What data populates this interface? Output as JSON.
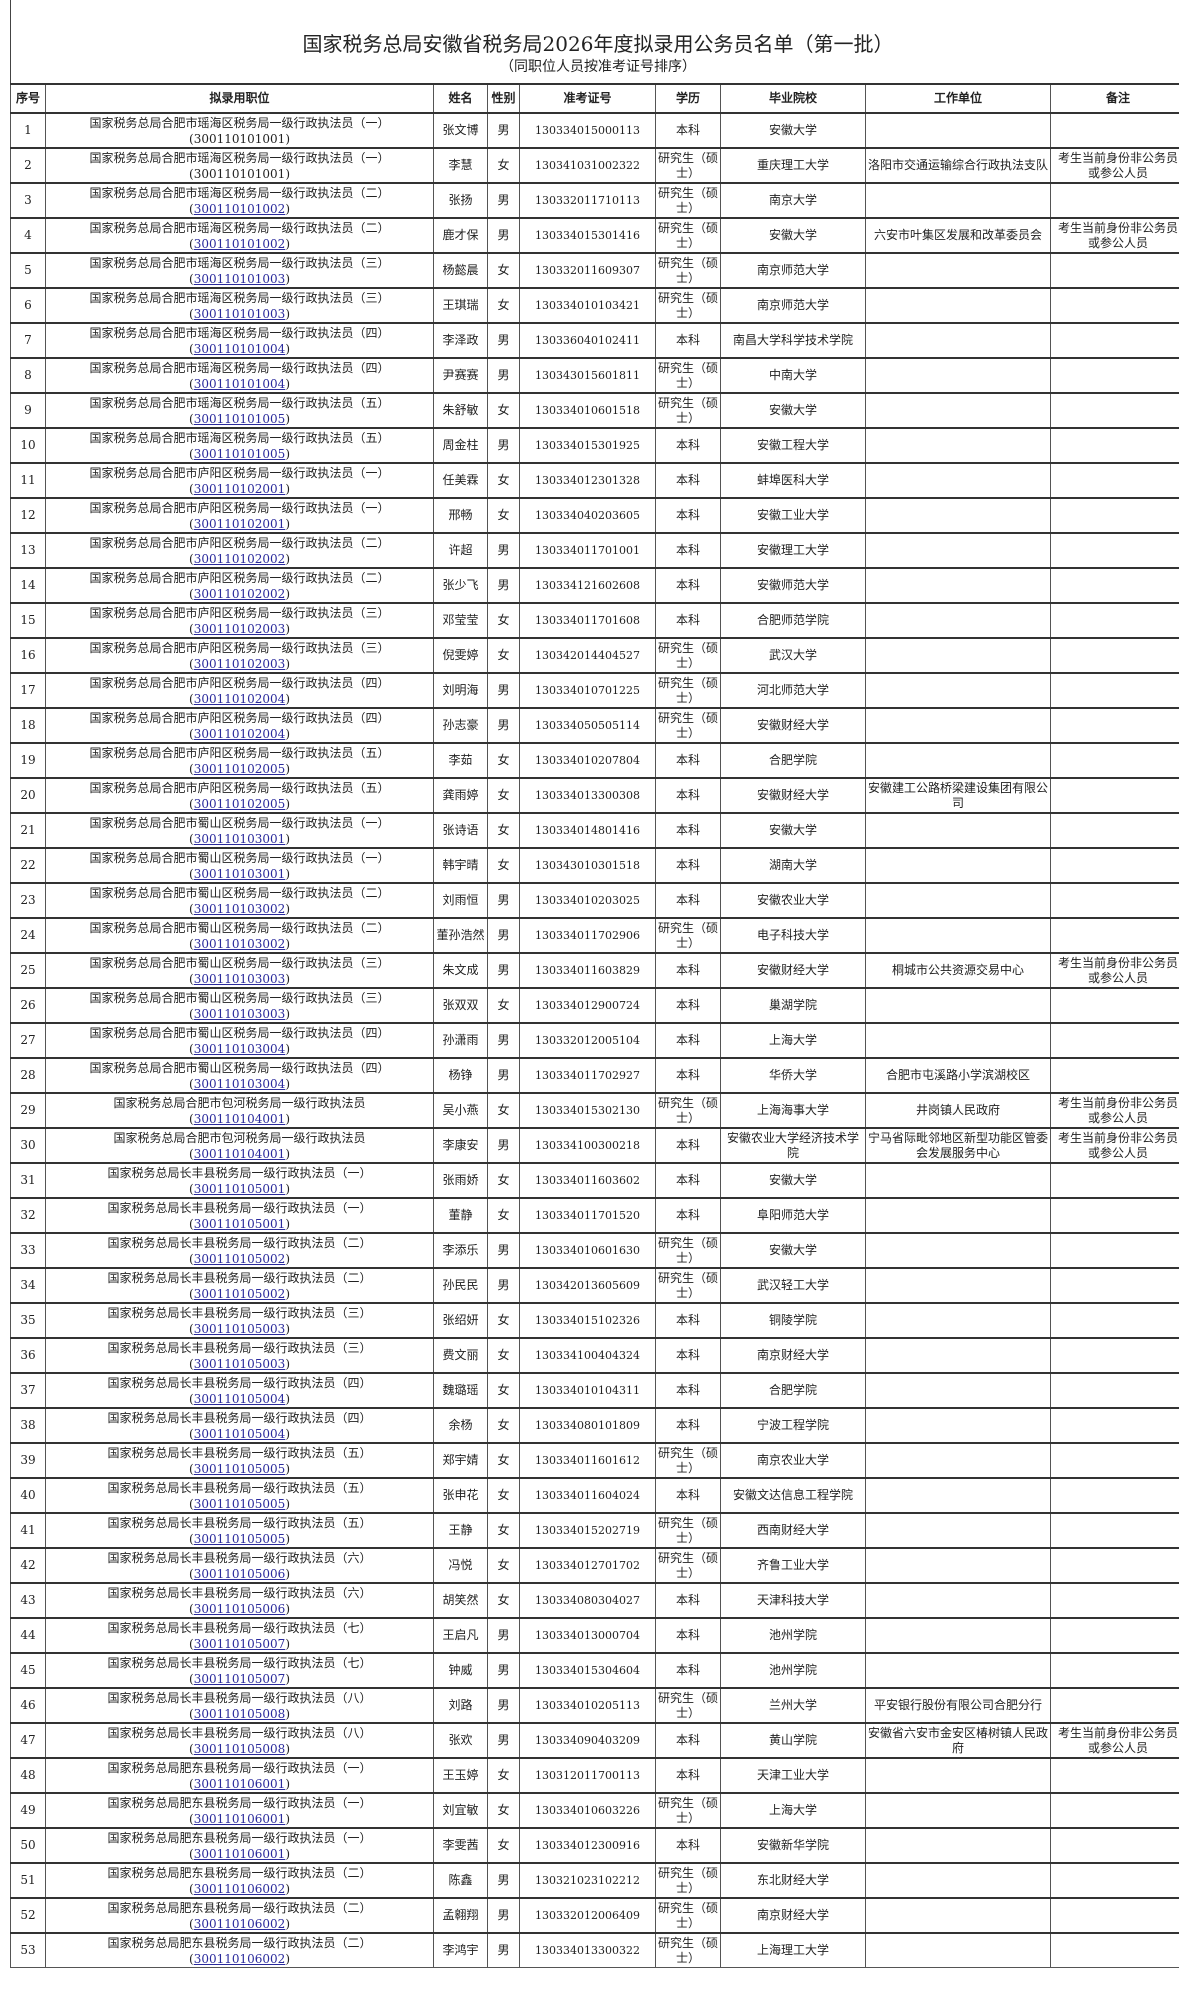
{
  "title": "国家税务总局安徽省税务局2026年度拟录用公务员名单（第一批）",
  "subtitle": "（同职位人员按准考证号排序）",
  "columns": [
    "序号",
    "拟录用职位",
    "姓名",
    "性别",
    "准考证号",
    "学历",
    "毕业院校",
    "工作单位",
    "备注"
  ],
  "link_color": "#2a2a9c",
  "rows": [
    {
      "no": "1",
      "position": "国家税务总局合肥市瑶海区税务局一级行政执法员（一）",
      "code": "300110101001",
      "code_link": false,
      "name": "张文博",
      "gender": "男",
      "exam_no": "130334015000113",
      "education": "本科",
      "school": "安徽大学",
      "employer": "",
      "note": ""
    },
    {
      "no": "2",
      "position": "国家税务总局合肥市瑶海区税务局一级行政执法员（一）",
      "code": "300110101001",
      "code_link": false,
      "name": "李慧",
      "gender": "女",
      "exam_no": "130341031002322",
      "education": "研究生（硕士）",
      "school": "重庆理工大学",
      "employer": "洛阳市交通运输综合行政执法支队",
      "note": "考生当前身份非公务员或参公人员"
    },
    {
      "no": "3",
      "position": "国家税务总局合肥市瑶海区税务局一级行政执法员（二）",
      "code": "300110101002",
      "code_link": true,
      "name": "张扬",
      "gender": "男",
      "exam_no": "130332011710113",
      "education": "研究生（硕士）",
      "school": "南京大学",
      "employer": "",
      "note": ""
    },
    {
      "no": "4",
      "position": "国家税务总局合肥市瑶海区税务局一级行政执法员（二）",
      "code": "300110101002",
      "code_link": true,
      "name": "鹿才保",
      "gender": "男",
      "exam_no": "130334015301416",
      "education": "研究生（硕士）",
      "school": "安徽大学",
      "employer": "六安市叶集区发展和改革委员会",
      "note": "考生当前身份非公务员或参公人员"
    },
    {
      "no": "5",
      "position": "国家税务总局合肥市瑶海区税务局一级行政执法员（三）",
      "code": "300110101003",
      "code_link": true,
      "name": "杨懿晨",
      "gender": "女",
      "exam_no": "130332011609307",
      "education": "研究生（硕士）",
      "school": "南京师范大学",
      "employer": "",
      "note": ""
    },
    {
      "no": "6",
      "position": "国家税务总局合肥市瑶海区税务局一级行政执法员（三）",
      "code": "300110101003",
      "code_link": true,
      "name": "王琪瑞",
      "gender": "女",
      "exam_no": "130334010103421",
      "education": "研究生（硕士）",
      "school": "南京师范大学",
      "employer": "",
      "note": ""
    },
    {
      "no": "7",
      "position": "国家税务总局合肥市瑶海区税务局一级行政执法员（四）",
      "code": "300110101004",
      "code_link": true,
      "name": "李泽政",
      "gender": "男",
      "exam_no": "130336040102411",
      "education": "本科",
      "school": "南昌大学科学技术学院",
      "employer": "",
      "note": ""
    },
    {
      "no": "8",
      "position": "国家税务总局合肥市瑶海区税务局一级行政执法员（四）",
      "code": "300110101004",
      "code_link": true,
      "name": "尹赛赛",
      "gender": "男",
      "exam_no": "130343015601811",
      "education": "研究生（硕士）",
      "school": "中南大学",
      "employer": "",
      "note": ""
    },
    {
      "no": "9",
      "position": "国家税务总局合肥市瑶海区税务局一级行政执法员（五）",
      "code": "300110101005",
      "code_link": true,
      "name": "朱舒敏",
      "gender": "女",
      "exam_no": "130334010601518",
      "education": "研究生（硕士）",
      "school": "安徽大学",
      "employer": "",
      "note": ""
    },
    {
      "no": "10",
      "position": "国家税务总局合肥市瑶海区税务局一级行政执法员（五）",
      "code": "300110101005",
      "code_link": true,
      "name": "周金柱",
      "gender": "男",
      "exam_no": "130334015301925",
      "education": "本科",
      "school": "安徽工程大学",
      "employer": "",
      "note": ""
    },
    {
      "no": "11",
      "position": "国家税务总局合肥市庐阳区税务局一级行政执法员（一）",
      "code": "300110102001",
      "code_link": true,
      "name": "任美霖",
      "gender": "女",
      "exam_no": "130334012301328",
      "education": "本科",
      "school": "蚌埠医科大学",
      "employer": "",
      "note": ""
    },
    {
      "no": "12",
      "position": "国家税务总局合肥市庐阳区税务局一级行政执法员（一）",
      "code": "300110102001",
      "code_link": true,
      "name": "邢畅",
      "gender": "女",
      "exam_no": "130334040203605",
      "education": "本科",
      "school": "安徽工业大学",
      "employer": "",
      "note": ""
    },
    {
      "no": "13",
      "position": "国家税务总局合肥市庐阳区税务局一级行政执法员（二）",
      "code": "300110102002",
      "code_link": true,
      "name": "许超",
      "gender": "男",
      "exam_no": "130334011701001",
      "education": "本科",
      "school": "安徽理工大学",
      "employer": "",
      "note": ""
    },
    {
      "no": "14",
      "position": "国家税务总局合肥市庐阳区税务局一级行政执法员（二）",
      "code": "300110102002",
      "code_link": true,
      "name": "张少飞",
      "gender": "男",
      "exam_no": "130334121602608",
      "education": "本科",
      "school": "安徽师范大学",
      "employer": "",
      "note": ""
    },
    {
      "no": "15",
      "position": "国家税务总局合肥市庐阳区税务局一级行政执法员（三）",
      "code": "300110102003",
      "code_link": true,
      "name": "邓莹莹",
      "gender": "女",
      "exam_no": "130334011701608",
      "education": "本科",
      "school": "合肥师范学院",
      "employer": "",
      "note": ""
    },
    {
      "no": "16",
      "position": "国家税务总局合肥市庐阳区税务局一级行政执法员（三）",
      "code": "300110102003",
      "code_link": true,
      "name": "倪雯婷",
      "gender": "女",
      "exam_no": "130342014404527",
      "education": "研究生（硕士）",
      "school": "武汉大学",
      "employer": "",
      "note": ""
    },
    {
      "no": "17",
      "position": "国家税务总局合肥市庐阳区税务局一级行政执法员（四）",
      "code": "300110102004",
      "code_link": true,
      "name": "刘明海",
      "gender": "男",
      "exam_no": "130334010701225",
      "education": "研究生（硕士）",
      "school": "河北师范大学",
      "employer": "",
      "note": ""
    },
    {
      "no": "18",
      "position": "国家税务总局合肥市庐阳区税务局一级行政执法员（四）",
      "code": "300110102004",
      "code_link": true,
      "name": "孙志豪",
      "gender": "男",
      "exam_no": "130334050505114",
      "education": "研究生（硕士）",
      "school": "安徽财经大学",
      "employer": "",
      "note": ""
    },
    {
      "no": "19",
      "position": "国家税务总局合肥市庐阳区税务局一级行政执法员（五）",
      "code": "300110102005",
      "code_link": true,
      "name": "李茹",
      "gender": "女",
      "exam_no": "130334010207804",
      "education": "本科",
      "school": "合肥学院",
      "employer": "",
      "note": ""
    },
    {
      "no": "20",
      "position": "国家税务总局合肥市庐阳区税务局一级行政执法员（五）",
      "code": "300110102005",
      "code_link": true,
      "name": "龚雨婷",
      "gender": "女",
      "exam_no": "130334013300308",
      "education": "本科",
      "school": "安徽财经大学",
      "employer": "安徽建工公路桥梁建设集团有限公司",
      "note": ""
    },
    {
      "no": "21",
      "position": "国家税务总局合肥市蜀山区税务局一级行政执法员（一）",
      "code": "300110103001",
      "code_link": true,
      "name": "张诗语",
      "gender": "女",
      "exam_no": "130334014801416",
      "education": "本科",
      "school": "安徽大学",
      "employer": "",
      "note": ""
    },
    {
      "no": "22",
      "position": "国家税务总局合肥市蜀山区税务局一级行政执法员（一）",
      "code": "300110103001",
      "code_link": true,
      "name": "韩宇晴",
      "gender": "女",
      "exam_no": "130343010301518",
      "education": "本科",
      "school": "湖南大学",
      "employer": "",
      "note": ""
    },
    {
      "no": "23",
      "position": "国家税务总局合肥市蜀山区税务局一级行政执法员（二）",
      "code": "300110103002",
      "code_link": true,
      "name": "刘雨恒",
      "gender": "男",
      "exam_no": "130334010203025",
      "education": "本科",
      "school": "安徽农业大学",
      "employer": "",
      "note": ""
    },
    {
      "no": "24",
      "position": "国家税务总局合肥市蜀山区税务局一级行政执法员（二）",
      "code": "300110103002",
      "code_link": true,
      "name": "董孙浩然",
      "gender": "男",
      "exam_no": "130334011702906",
      "education": "研究生（硕士）",
      "school": "电子科技大学",
      "employer": "",
      "note": ""
    },
    {
      "no": "25",
      "position": "国家税务总局合肥市蜀山区税务局一级行政执法员（三）",
      "code": "300110103003",
      "code_link": true,
      "name": "朱文成",
      "gender": "男",
      "exam_no": "130334011603829",
      "education": "本科",
      "school": "安徽财经大学",
      "employer": "桐城市公共资源交易中心",
      "note": "考生当前身份非公务员或参公人员"
    },
    {
      "no": "26",
      "position": "国家税务总局合肥市蜀山区税务局一级行政执法员（三）",
      "code": "300110103003",
      "code_link": true,
      "name": "张双双",
      "gender": "女",
      "exam_no": "130334012900724",
      "education": "本科",
      "school": "巢湖学院",
      "employer": "",
      "note": ""
    },
    {
      "no": "27",
      "position": "国家税务总局合肥市蜀山区税务局一级行政执法员（四）",
      "code": "300110103004",
      "code_link": true,
      "name": "孙潇雨",
      "gender": "男",
      "exam_no": "130332012005104",
      "education": "本科",
      "school": "上海大学",
      "employer": "",
      "note": ""
    },
    {
      "no": "28",
      "position": "国家税务总局合肥市蜀山区税务局一级行政执法员（四）",
      "code": "300110103004",
      "code_link": true,
      "name": "杨铮",
      "gender": "男",
      "exam_no": "130334011702927",
      "education": "本科",
      "school": "华侨大学",
      "employer": "合肥市屯溪路小学滨湖校区",
      "note": ""
    },
    {
      "no": "29",
      "position": "国家税务总局合肥市包河税务局一级行政执法员",
      "code": "300110104001",
      "code_link": true,
      "name": "吴小燕",
      "gender": "女",
      "exam_no": "130334015302130",
      "education": "研究生（硕士）",
      "school": "上海海事大学",
      "employer": "井岗镇人民政府",
      "note": "考生当前身份非公务员或参公人员"
    },
    {
      "no": "30",
      "position": "国家税务总局合肥市包河税务局一级行政执法员",
      "code": "300110104001",
      "code_link": true,
      "name": "李康安",
      "gender": "男",
      "exam_no": "130334100300218",
      "education": "本科",
      "school": "安徽农业大学经济技术学院",
      "employer": "宁马省际毗邻地区新型功能区管委会发展服务中心",
      "note": "考生当前身份非公务员或参公人员"
    },
    {
      "no": "31",
      "position": "国家税务总局长丰县税务局一级行政执法员（一）",
      "code": "300110105001",
      "code_link": true,
      "name": "张雨娇",
      "gender": "女",
      "exam_no": "130334011603602",
      "education": "本科",
      "school": "安徽大学",
      "employer": "",
      "note": ""
    },
    {
      "no": "32",
      "position": "国家税务总局长丰县税务局一级行政执法员（一）",
      "code": "300110105001",
      "code_link": true,
      "name": "董静",
      "gender": "女",
      "exam_no": "130334011701520",
      "education": "本科",
      "school": "阜阳师范大学",
      "employer": "",
      "note": ""
    },
    {
      "no": "33",
      "position": "国家税务总局长丰县税务局一级行政执法员（二）",
      "code": "300110105002",
      "code_link": true,
      "name": "李添乐",
      "gender": "男",
      "exam_no": "130334010601630",
      "education": "研究生（硕士）",
      "school": "安徽大学",
      "employer": "",
      "note": ""
    },
    {
      "no": "34",
      "position": "国家税务总局长丰县税务局一级行政执法员（二）",
      "code": "300110105002",
      "code_link": true,
      "name": "孙民民",
      "gender": "男",
      "exam_no": "130342013605609",
      "education": "研究生（硕士）",
      "school": "武汉轻工大学",
      "employer": "",
      "note": ""
    },
    {
      "no": "35",
      "position": "国家税务总局长丰县税务局一级行政执法员（三）",
      "code": "300110105003",
      "code_link": true,
      "name": "张绍妍",
      "gender": "女",
      "exam_no": "130334015102326",
      "education": "本科",
      "school": "铜陵学院",
      "employer": "",
      "note": ""
    },
    {
      "no": "36",
      "position": "国家税务总局长丰县税务局一级行政执法员（三）",
      "code": "300110105003",
      "code_link": true,
      "name": "费文丽",
      "gender": "女",
      "exam_no": "130334100404324",
      "education": "本科",
      "school": "南京财经大学",
      "employer": "",
      "note": ""
    },
    {
      "no": "37",
      "position": "国家税务总局长丰县税务局一级行政执法员（四）",
      "code": "300110105004",
      "code_link": true,
      "name": "魏璐瑶",
      "gender": "女",
      "exam_no": "130334010104311",
      "education": "本科",
      "school": "合肥学院",
      "employer": "",
      "note": ""
    },
    {
      "no": "38",
      "position": "国家税务总局长丰县税务局一级行政执法员（四）",
      "code": "300110105004",
      "code_link": true,
      "name": "余杨",
      "gender": "女",
      "exam_no": "130334080101809",
      "education": "本科",
      "school": "宁波工程学院",
      "employer": "",
      "note": ""
    },
    {
      "no": "39",
      "position": "国家税务总局长丰县税务局一级行政执法员（五）",
      "code": "300110105005",
      "code_link": true,
      "name": "郑宇婧",
      "gender": "女",
      "exam_no": "130334011601612",
      "education": "研究生（硕士）",
      "school": "南京农业大学",
      "employer": "",
      "note": ""
    },
    {
      "no": "40",
      "position": "国家税务总局长丰县税务局一级行政执法员（五）",
      "code": "300110105005",
      "code_link": true,
      "name": "张申花",
      "gender": "女",
      "exam_no": "130334011604024",
      "education": "本科",
      "school": "安徽文达信息工程学院",
      "employer": "",
      "note": ""
    },
    {
      "no": "41",
      "position": "国家税务总局长丰县税务局一级行政执法员（五）",
      "code": "300110105005",
      "code_link": true,
      "name": "王静",
      "gender": "女",
      "exam_no": "130334015202719",
      "education": "研究生（硕士）",
      "school": "西南财经大学",
      "employer": "",
      "note": ""
    },
    {
      "no": "42",
      "position": "国家税务总局长丰县税务局一级行政执法员（六）",
      "code": "300110105006",
      "code_link": true,
      "name": "冯悦",
      "gender": "女",
      "exam_no": "130334012701702",
      "education": "研究生（硕士）",
      "school": "齐鲁工业大学",
      "employer": "",
      "note": ""
    },
    {
      "no": "43",
      "position": "国家税务总局长丰县税务局一级行政执法员（六）",
      "code": "300110105006",
      "code_link": true,
      "name": "胡笑然",
      "gender": "女",
      "exam_no": "130334080304027",
      "education": "本科",
      "school": "天津科技大学",
      "employer": "",
      "note": ""
    },
    {
      "no": "44",
      "position": "国家税务总局长丰县税务局一级行政执法员（七）",
      "code": "300110105007",
      "code_link": true,
      "name": "王启凡",
      "gender": "男",
      "exam_no": "130334013000704",
      "education": "本科",
      "school": "池州学院",
      "employer": "",
      "note": ""
    },
    {
      "no": "45",
      "position": "国家税务总局长丰县税务局一级行政执法员（七）",
      "code": "300110105007",
      "code_link": true,
      "name": "钟威",
      "gender": "男",
      "exam_no": "130334015304604",
      "education": "本科",
      "school": "池州学院",
      "employer": "",
      "note": ""
    },
    {
      "no": "46",
      "position": "国家税务总局长丰县税务局一级行政执法员（八）",
      "code": "300110105008",
      "code_link": true,
      "name": "刘路",
      "gender": "男",
      "exam_no": "130334010205113",
      "education": "研究生（硕士）",
      "school": "兰州大学",
      "employer": "平安银行股份有限公司合肥分行",
      "note": ""
    },
    {
      "no": "47",
      "position": "国家税务总局长丰县税务局一级行政执法员（八）",
      "code": "300110105008",
      "code_link": true,
      "name": "张欢",
      "gender": "男",
      "exam_no": "130334090403209",
      "education": "本科",
      "school": "黄山学院",
      "employer": "安徽省六安市金安区椿树镇人民政府",
      "note": "考生当前身份非公务员或参公人员"
    },
    {
      "no": "48",
      "position": "国家税务总局肥东县税务局一级行政执法员（一）",
      "code": "300110106001",
      "code_link": true,
      "name": "王玉婷",
      "gender": "女",
      "exam_no": "130312011700113",
      "education": "本科",
      "school": "天津工业大学",
      "employer": "",
      "note": ""
    },
    {
      "no": "49",
      "position": "国家税务总局肥东县税务局一级行政执法员（一）",
      "code": "300110106001",
      "code_link": true,
      "name": "刘宜敏",
      "gender": "女",
      "exam_no": "130334010603226",
      "education": "研究生（硕士）",
      "school": "上海大学",
      "employer": "",
      "note": ""
    },
    {
      "no": "50",
      "position": "国家税务总局肥东县税务局一级行政执法员（一）",
      "code": "300110106001",
      "code_link": true,
      "name": "李雯茜",
      "gender": "女",
      "exam_no": "130334012300916",
      "education": "本科",
      "school": "安徽新华学院",
      "employer": "",
      "note": ""
    },
    {
      "no": "51",
      "position": "国家税务总局肥东县税务局一级行政执法员（二）",
      "code": "300110106002",
      "code_link": true,
      "name": "陈鑫",
      "gender": "男",
      "exam_no": "130321023102212",
      "education": "研究生（硕士）",
      "school": "东北财经大学",
      "employer": "",
      "note": ""
    },
    {
      "no": "52",
      "position": "国家税务总局肥东县税务局一级行政执法员（二）",
      "code": "300110106002",
      "code_link": true,
      "name": "孟翱翔",
      "gender": "男",
      "exam_no": "130332012006409",
      "education": "研究生（硕士）",
      "school": "南京财经大学",
      "employer": "",
      "note": ""
    },
    {
      "no": "53",
      "position": "国家税务总局肥东县税务局一级行政执法员（二）",
      "code": "300110106002",
      "code_link": true,
      "name": "李鸿宇",
      "gender": "男",
      "exam_no": "130334013300322",
      "education": "研究生（硕士）",
      "school": "上海理工大学",
      "employer": "",
      "note": ""
    }
  ]
}
